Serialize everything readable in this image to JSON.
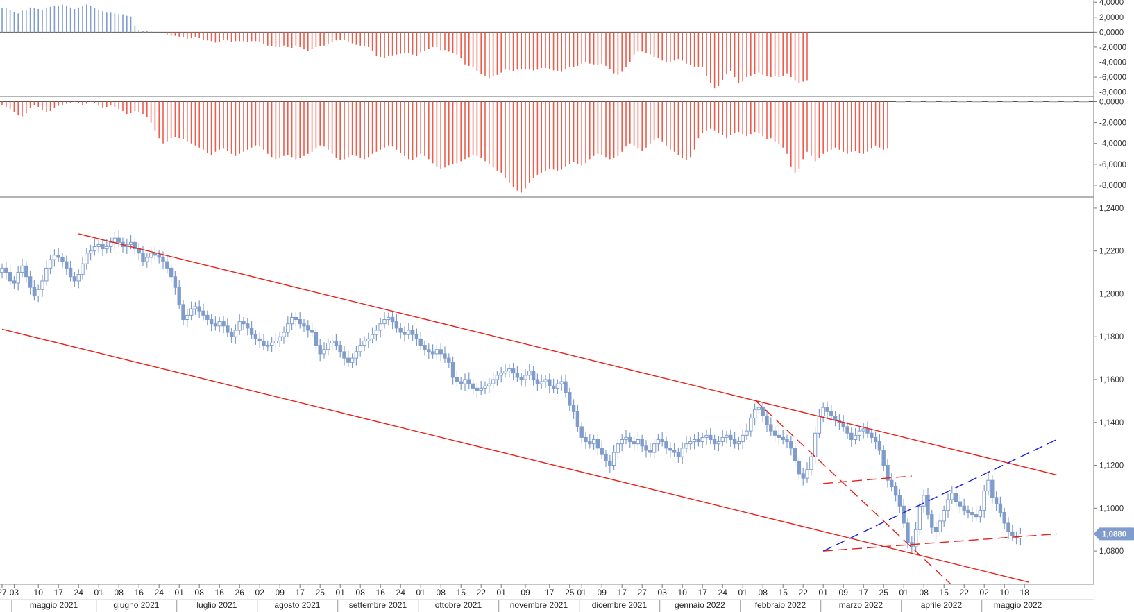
{
  "chart_data": [
    {
      "type": "bar",
      "panel": "oscillator-top",
      "y_ticks": [
        "4,0000",
        "2,0000",
        "0,0000",
        "-2,0000",
        "-4,0000",
        "-6,0000",
        "-8,0000"
      ],
      "y_tick_values": [
        4,
        2,
        0,
        -2,
        -4,
        -6,
        -8
      ],
      "ylim": [
        -8.5,
        4.3
      ],
      "positive_color": "#7f9ccc",
      "negative_color": "#ee5c4c",
      "values": [
        3.2,
        3.2,
        2.9,
        2.7,
        2.5,
        2.9,
        3.0,
        3.3,
        3.2,
        3.1,
        3.0,
        3.3,
        3.4,
        3.5,
        3.5,
        3.7,
        3.5,
        3.3,
        3.1,
        3.3,
        3.5,
        3.7,
        3.5,
        3.2,
        3.0,
        2.8,
        2.6,
        2.6,
        2.5,
        2.4,
        2.4,
        2.2,
        2.1,
        0.9,
        0.3,
        0.2,
        0.15,
        0.1,
        0.05,
        0.0,
        0.0,
        -0.3,
        -0.5,
        -0.5,
        -0.6,
        -0.7,
        -0.9,
        -0.8,
        -0.6,
        -0.8,
        -1.0,
        -1.1,
        -1.2,
        -1.4,
        -1.3,
        -1.0,
        -1.1,
        -1.3,
        -1.2,
        -1.2,
        -1.2,
        -1.3,
        -1.2,
        -1.2,
        -1.3,
        -1.6,
        -1.8,
        -1.9,
        -2.0,
        -2.0,
        -1.8,
        -2.0,
        -2.1,
        -1.8,
        -2.0,
        -2.3,
        -2.5,
        -2.2,
        -2.0,
        -1.9,
        -1.8,
        -1.6,
        -1.3,
        -1.1,
        -1.0,
        -1.0,
        -1.3,
        -1.5,
        -1.7,
        -1.8,
        -1.9,
        -2.0,
        -2.5,
        -3.2,
        -3.3,
        -3.4,
        -3.2,
        -3.1,
        -3.0,
        -2.9,
        -2.8,
        -2.8,
        -3.0,
        -3.2,
        -2.7,
        -2.5,
        -2.2,
        -2.0,
        -2.0,
        -2.4,
        -2.4,
        -2.6,
        -2.8,
        -3.0,
        -3.5,
        -4.3,
        -4.5,
        -4.7,
        -5.2,
        -5.6,
        -5.8,
        -6.2,
        -5.9,
        -5.7,
        -5.4,
        -5.0,
        -5.1,
        -5.2,
        -5.0,
        -4.9,
        -5.0,
        -5.0,
        -5.1,
        -5.0,
        -4.8,
        -4.8,
        -4.9,
        -5.1,
        -5.2,
        -5.3,
        -5.0,
        -4.7,
        -4.6,
        -4.5,
        -4.2,
        -4.0,
        -4.2,
        -4.3,
        -4.4,
        -4.2,
        -4.5,
        -4.9,
        -5.5,
        -5.7,
        -5.3,
        -4.6,
        -4.0,
        -3.0,
        -2.6,
        -2.6,
        -2.8,
        -3.0,
        -3.3,
        -3.5,
        -3.8,
        -4.0,
        -4.0,
        -3.8,
        -3.6,
        -3.8,
        -4.2,
        -4.4,
        -4.6,
        -4.6,
        -4.6,
        -5.8,
        -6.8,
        -7.5,
        -7.2,
        -6.4,
        -5.6,
        -5.2,
        -6.0,
        -6.8,
        -6.6,
        -6.0,
        -5.8,
        -5.6,
        -5.4,
        -5.7,
        -5.9,
        -6.0,
        -5.8,
        -6.0,
        -5.8,
        -5.5,
        -6.0,
        -6.5,
        -6.8,
        -6.6,
        -6.5
      ]
    },
    {
      "type": "bar",
      "panel": "oscillator-middle",
      "y_ticks": [
        "0,0000",
        "-2,0000",
        "-4,0000",
        "-6,0000",
        "-8,0000"
      ],
      "y_tick_values": [
        0,
        -2,
        -4,
        -6,
        -8
      ],
      "ylim": [
        -9.0,
        0.3
      ],
      "reference_line": 0,
      "positive_color": "#7f9ccc",
      "negative_color": "#ee5c4c",
      "values": [
        -0.3,
        -0.5,
        -0.7,
        -1.0,
        -1.3,
        -1.4,
        -1.1,
        -0.6,
        -0.3,
        -0.5,
        -0.8,
        -1.0,
        -0.9,
        -0.6,
        -0.4,
        -0.3,
        -0.2,
        -0.1,
        0.1,
        -0.1,
        -0.3,
        -0.2,
        0.1,
        -0.1,
        -0.4,
        -0.6,
        -0.5,
        -0.3,
        -0.5,
        -0.7,
        -0.9,
        -1.2,
        -1.1,
        -0.9,
        -1.0,
        -1.2,
        -1.5,
        -2.0,
        -2.8,
        -3.5,
        -4.0,
        -3.8,
        -3.5,
        -3.4,
        -3.5,
        -3.6,
        -3.8,
        -4.0,
        -4.2,
        -4.4,
        -4.6,
        -4.9,
        -5.1,
        -4.8,
        -4.6,
        -4.5,
        -4.7,
        -5.0,
        -5.2,
        -5.0,
        -4.8,
        -4.6,
        -4.4,
        -4.2,
        -4.3,
        -4.6,
        -5.0,
        -5.3,
        -5.5,
        -5.4,
        -5.2,
        -5.1,
        -5.3,
        -5.5,
        -5.4,
        -5.2,
        -5.0,
        -4.8,
        -4.5,
        -4.2,
        -4.3,
        -4.6,
        -5.0,
        -5.4,
        -5.6,
        -5.5,
        -5.3,
        -5.1,
        -5.2,
        -5.4,
        -5.5,
        -5.3,
        -5.0,
        -4.8,
        -4.6,
        -4.4,
        -4.2,
        -4.3,
        -4.6,
        -4.9,
        -5.2,
        -5.5,
        -5.6,
        -5.3,
        -5.0,
        -5.2,
        -5.5,
        -5.9,
        -6.2,
        -6.4,
        -6.3,
        -6.1,
        -6.0,
        -5.9,
        -5.7,
        -5.5,
        -5.3,
        -5.1,
        -5.2,
        -5.4,
        -5.7,
        -6.0,
        -6.3,
        -6.6,
        -6.8,
        -7.3,
        -7.8,
        -8.2,
        -8.5,
        -8.7,
        -8.3,
        -7.8,
        -7.3,
        -7.0,
        -6.8,
        -6.6,
        -6.4,
        -6.5,
        -6.6,
        -6.5,
        -6.2,
        -6.0,
        -5.8,
        -6.0,
        -6.1,
        -5.9,
        -5.5,
        -5.2,
        -5.0,
        -5.1,
        -5.3,
        -5.5,
        -5.4,
        -5.2,
        -4.8,
        -4.3,
        -4.0,
        -4.2,
        -4.5,
        -4.7,
        -4.4,
        -4.0,
        -3.7,
        -3.5,
        -3.8,
        -4.2,
        -4.6,
        -4.8,
        -5.1,
        -5.4,
        -5.6,
        -5.3,
        -4.6,
        -3.5,
        -3.0,
        -2.8,
        -2.6,
        -2.8,
        -3.0,
        -3.2,
        -3.5,
        -3.2,
        -3.0,
        -2.9,
        -3.1,
        -3.3,
        -3.1,
        -2.9,
        -3.0,
        -3.3,
        -3.6,
        -3.5,
        -3.8,
        -4.1,
        -4.4,
        -5.0,
        -6.2,
        -6.8,
        -6.4,
        -5.5,
        -4.8,
        -5.2,
        -5.7,
        -5.4,
        -5.0,
        -4.8,
        -4.6,
        -4.4,
        -4.6,
        -4.8,
        -5.0,
        -4.8,
        -4.7,
        -4.9,
        -5.0,
        -4.8,
        -4.5,
        -4.2,
        -4.4,
        -4.6,
        -4.5
      ]
    },
    {
      "type": "candlestick",
      "panel": "price",
      "y_ticks": [
        "1,2400",
        "1,2200",
        "1,2000",
        "1,1800",
        "1,1600",
        "1,1400",
        "1,1200",
        "1,1000",
        "1,0800"
      ],
      "y_tick_values": [
        1.24,
        1.22,
        1.2,
        1.18,
        1.16,
        1.14,
        1.12,
        1.1,
        1.08
      ],
      "ylim": [
        1.0645,
        1.2445
      ],
      "candle_color": "#7f9ccc",
      "last_price_label": "1,0880",
      "last_price": 1.088,
      "close": [
        1.212,
        1.21,
        1.206,
        1.205,
        1.21,
        1.213,
        1.208,
        1.203,
        1.199,
        1.202,
        1.206,
        1.212,
        1.216,
        1.218,
        1.217,
        1.215,
        1.212,
        1.208,
        1.206,
        1.209,
        1.214,
        1.219,
        1.22,
        1.222,
        1.223,
        1.221,
        1.222,
        1.224,
        1.226,
        1.224,
        1.222,
        1.223,
        1.224,
        1.221,
        1.219,
        1.215,
        1.217,
        1.219,
        1.218,
        1.217,
        1.215,
        1.212,
        1.208,
        1.203,
        1.195,
        1.188,
        1.19,
        1.193,
        1.194,
        1.192,
        1.19,
        1.188,
        1.186,
        1.185,
        1.187,
        1.185,
        1.182,
        1.18,
        1.183,
        1.187,
        1.186,
        1.184,
        1.181,
        1.179,
        1.178,
        1.176,
        1.176,
        1.177,
        1.178,
        1.18,
        1.182,
        1.186,
        1.189,
        1.188,
        1.186,
        1.185,
        1.183,
        1.182,
        1.176,
        1.172,
        1.174,
        1.177,
        1.178,
        1.176,
        1.173,
        1.17,
        1.168,
        1.17,
        1.173,
        1.176,
        1.178,
        1.179,
        1.181,
        1.183,
        1.186,
        1.188,
        1.189,
        1.187,
        1.184,
        1.182,
        1.181,
        1.183,
        1.181,
        1.179,
        1.176,
        1.174,
        1.173,
        1.172,
        1.174,
        1.172,
        1.17,
        1.168,
        1.161,
        1.159,
        1.158,
        1.16,
        1.158,
        1.156,
        1.155,
        1.156,
        1.157,
        1.158,
        1.16,
        1.162,
        1.163,
        1.164,
        1.165,
        1.163,
        1.161,
        1.16,
        1.162,
        1.164,
        1.16,
        1.158,
        1.159,
        1.16,
        1.157,
        1.156,
        1.158,
        1.159,
        1.154,
        1.148,
        1.145,
        1.138,
        1.133,
        1.131,
        1.13,
        1.132,
        1.128,
        1.125,
        1.122,
        1.12,
        1.126,
        1.13,
        1.132,
        1.133,
        1.131,
        1.13,
        1.132,
        1.129,
        1.127,
        1.126,
        1.13,
        1.132,
        1.131,
        1.128,
        1.127,
        1.126,
        1.124,
        1.128,
        1.13,
        1.131,
        1.132,
        1.131,
        1.133,
        1.134,
        1.132,
        1.13,
        1.131,
        1.133,
        1.134,
        1.132,
        1.13,
        1.131,
        1.134,
        1.136,
        1.142,
        1.146,
        1.147,
        1.143,
        1.139,
        1.136,
        1.134,
        1.133,
        1.132,
        1.131,
        1.128,
        1.122,
        1.116,
        1.114,
        1.118,
        1.124,
        1.135,
        1.143,
        1.147,
        1.145,
        1.143,
        1.141,
        1.14,
        1.138,
        1.135,
        1.132,
        1.134,
        1.136,
        1.137,
        1.135,
        1.133,
        1.131,
        1.127,
        1.12,
        1.113,
        1.11,
        1.106,
        1.101,
        1.093,
        1.084,
        1.082,
        1.09,
        1.101,
        1.106,
        1.097,
        1.091,
        1.089,
        1.094,
        1.099,
        1.104,
        1.107,
        1.103,
        1.101,
        1.099,
        1.098,
        1.097,
        1.096,
        1.099,
        1.108,
        1.113,
        1.105,
        1.102,
        1.098,
        1.093,
        1.089,
        1.087,
        1.086,
        1.088
      ]
    }
  ],
  "x_axis": {
    "day_ticks": [
      {
        "i": 0,
        "label": "27"
      },
      {
        "i": 3,
        "label": "03"
      },
      {
        "i": 9,
        "label": "10"
      },
      {
        "i": 14,
        "label": "17"
      },
      {
        "i": 19,
        "label": "24"
      },
      {
        "i": 24,
        "label": "01"
      },
      {
        "i": 29,
        "label": "08"
      },
      {
        "i": 34,
        "label": "16"
      },
      {
        "i": 39,
        "label": "24"
      },
      {
        "i": 44,
        "label": "01"
      },
      {
        "i": 49,
        "label": "08"
      },
      {
        "i": 54,
        "label": "16"
      },
      {
        "i": 59,
        "label": "26"
      },
      {
        "i": 64,
        "label": "02"
      },
      {
        "i": 69,
        "label": "09"
      },
      {
        "i": 74,
        "label": "17"
      },
      {
        "i": 79,
        "label": "25"
      },
      {
        "i": 84,
        "label": "01"
      },
      {
        "i": 89,
        "label": "08"
      },
      {
        "i": 94,
        "label": "16"
      },
      {
        "i": 99,
        "label": "24"
      },
      {
        "i": 104,
        "label": "01"
      },
      {
        "i": 109,
        "label": "08"
      },
      {
        "i": 114,
        "label": "15"
      },
      {
        "i": 119,
        "label": "22"
      },
      {
        "i": 124,
        "label": "01"
      },
      {
        "i": 130,
        "label": "09"
      },
      {
        "i": 136,
        "label": "17"
      },
      {
        "i": 141,
        "label": "25"
      },
      {
        "i": 144,
        "label": "01"
      },
      {
        "i": 149,
        "label": "09"
      },
      {
        "i": 154,
        "label": "17"
      },
      {
        "i": 159,
        "label": "27"
      },
      {
        "i": 164,
        "label": "03"
      },
      {
        "i": 169,
        "label": "10"
      },
      {
        "i": 174,
        "label": "17"
      },
      {
        "i": 179,
        "label": "24"
      },
      {
        "i": 184,
        "label": "01"
      },
      {
        "i": 189,
        "label": "08"
      },
      {
        "i": 194,
        "label": "15"
      },
      {
        "i": 199,
        "label": "22"
      },
      {
        "i": 204,
        "label": "01"
      },
      {
        "i": 209,
        "label": "09"
      },
      {
        "i": 214,
        "label": "17"
      },
      {
        "i": 219,
        "label": "25"
      },
      {
        "i": 224,
        "label": "01"
      },
      {
        "i": 229,
        "label": "08"
      },
      {
        "i": 234,
        "label": "15"
      },
      {
        "i": 239,
        "label": "22"
      },
      {
        "i": 244,
        "label": "02"
      },
      {
        "i": 249,
        "label": "10"
      },
      {
        "i": 254,
        "label": "18"
      }
    ],
    "months": [
      {
        "start": 3,
        "end": 22,
        "label": "maggio 2021"
      },
      {
        "start": 24,
        "end": 42,
        "label": "giugno 2021"
      },
      {
        "start": 44,
        "end": 62,
        "label": "luglio 2021"
      },
      {
        "start": 64,
        "end": 82,
        "label": "agosto 2021"
      },
      {
        "start": 84,
        "end": 102,
        "label": "settembre 2021"
      },
      {
        "start": 104,
        "end": 122,
        "label": "ottobre 2021"
      },
      {
        "start": 124,
        "end": 142,
        "label": "novembre 2021"
      },
      {
        "start": 144,
        "end": 162,
        "label": "dicembre 2021"
      },
      {
        "start": 164,
        "end": 182,
        "label": "gennaio 2022"
      },
      {
        "start": 184,
        "end": 202,
        "label": "febbraio 2022"
      },
      {
        "start": 204,
        "end": 222,
        "label": "marzo 2022"
      },
      {
        "start": 224,
        "end": 242,
        "label": "aprile 2022"
      },
      {
        "start": 244,
        "end": 260,
        "label": "maggio 2022"
      }
    ]
  },
  "trend_lines": [
    {
      "name": "channel-upper",
      "style": "solid",
      "color": "#e8201a",
      "from": [
        19,
        1.228
      ],
      "to": [
        262,
        1.1155
      ]
    },
    {
      "name": "channel-lower",
      "style": "solid",
      "color": "#e8201a",
      "from": [
        0,
        1.1835
      ],
      "to": [
        255,
        1.0655
      ]
    },
    {
      "name": "triangle-upper",
      "style": "dashed",
      "color": "#e8201a",
      "from": [
        204,
        1.1115
      ],
      "to": [
        226,
        1.115
      ]
    },
    {
      "name": "triangle-lower",
      "style": "dashed",
      "color": "#e8201a",
      "from": [
        204,
        1.08
      ],
      "to": [
        262,
        1.088
      ]
    },
    {
      "name": "falling-dashed",
      "style": "dashed",
      "color": "#e8201a",
      "from": [
        187,
        1.1505
      ],
      "to": [
        236,
        1.064
      ]
    },
    {
      "name": "rising-dashed",
      "style": "dashed",
      "color": "#1a1ae8",
      "from": [
        204,
        1.08
      ],
      "to": [
        262,
        1.132
      ]
    }
  ]
}
